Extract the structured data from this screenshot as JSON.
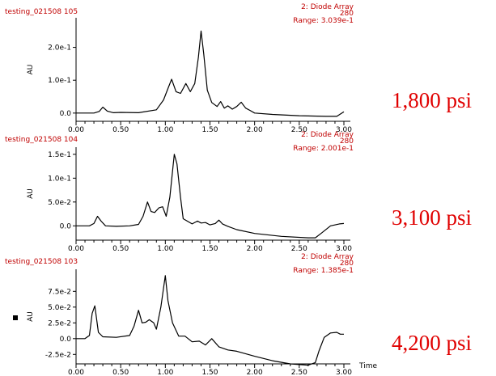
{
  "colors": {
    "header": "#c00000",
    "pressure": "#e00000",
    "trace": "#000000",
    "axis": "#000000"
  },
  "chart_data": [
    {
      "type": "line",
      "run_label": "testing_021508 105",
      "detector": "2: Diode Array",
      "wavelength": "280",
      "range_text": "Range: 3.039e-1",
      "ylabel": "AU",
      "xlabel": "",
      "pressure_label": "1,800 psi",
      "xlim": [
        0,
        3.0
      ],
      "ylim": [
        -0.025,
        0.29
      ],
      "x_ticks": [
        "0.00",
        "0.50",
        "1.00",
        "1.50",
        "2.00",
        "2.50",
        "3.00"
      ],
      "x_tick_values": [
        0,
        0.5,
        1.0,
        1.5,
        2.0,
        2.5,
        3.0
      ],
      "y_ticks": [
        "2.0e-1",
        "1.0e-1",
        "0.0"
      ],
      "y_tick_values": [
        0.2,
        0.1,
        0.0
      ],
      "x": [
        0,
        0.2,
        0.26,
        0.3,
        0.35,
        0.42,
        0.5,
        0.7,
        0.9,
        0.98,
        1.03,
        1.07,
        1.12,
        1.17,
        1.23,
        1.28,
        1.33,
        1.37,
        1.4,
        1.43,
        1.47,
        1.52,
        1.58,
        1.62,
        1.66,
        1.7,
        1.75,
        1.8,
        1.85,
        1.9,
        1.95,
        2.0,
        2.2,
        2.5,
        2.8,
        2.92,
        3.0
      ],
      "y": [
        0,
        0,
        0.005,
        0.018,
        0.006,
        0.001,
        0.002,
        0.001,
        0.01,
        0.04,
        0.075,
        0.103,
        0.065,
        0.06,
        0.09,
        0.065,
        0.09,
        0.17,
        0.25,
        0.18,
        0.07,
        0.032,
        0.02,
        0.035,
        0.015,
        0.022,
        0.012,
        0.02,
        0.033,
        0.015,
        0.008,
        0.0,
        -0.004,
        -0.008,
        -0.01,
        -0.01,
        0.004
      ]
    },
    {
      "type": "line",
      "run_label": "testing_021508 104",
      "detector": "2: Diode Array",
      "wavelength": "280",
      "range_text": "Range: 2.001e-1",
      "ylabel": "AU",
      "xlabel": "",
      "pressure_label": "3,100 psi",
      "xlim": [
        0,
        3.0
      ],
      "ylim": [
        -0.03,
        0.165
      ],
      "x_ticks": [
        "0.00",
        "0.50",
        "1.00",
        "1.50",
        "2.00",
        "2.50",
        "3.00"
      ],
      "x_tick_values": [
        0,
        0.5,
        1.0,
        1.5,
        2.0,
        2.5,
        3.0
      ],
      "y_ticks": [
        "1.5e-1",
        "1.0e-1",
        "5.0e-2",
        "0.0"
      ],
      "y_tick_values": [
        0.15,
        0.1,
        0.05,
        0.0
      ],
      "x": [
        0,
        0.15,
        0.2,
        0.24,
        0.28,
        0.33,
        0.45,
        0.6,
        0.7,
        0.75,
        0.8,
        0.84,
        0.88,
        0.93,
        0.97,
        1.01,
        1.05,
        1.1,
        1.13,
        1.17,
        1.2,
        1.3,
        1.36,
        1.4,
        1.45,
        1.5,
        1.56,
        1.6,
        1.64,
        1.7,
        1.8,
        2.0,
        2.3,
        2.6,
        2.68,
        2.75,
        2.85,
        2.95,
        3.0
      ],
      "y": [
        0,
        0,
        0.005,
        0.02,
        0.01,
        0.0,
        -0.001,
        0.0,
        0.003,
        0.02,
        0.05,
        0.03,
        0.028,
        0.038,
        0.04,
        0.02,
        0.06,
        0.15,
        0.13,
        0.06,
        0.015,
        0.004,
        0.01,
        0.006,
        0.007,
        0.002,
        0.005,
        0.012,
        0.004,
        -0.001,
        -0.008,
        -0.016,
        -0.022,
        -0.025,
        -0.025,
        -0.015,
        0.0,
        0.004,
        0.005
      ]
    },
    {
      "type": "line",
      "run_label": "testing_021508 103",
      "detector": "2: Diode Array",
      "wavelength": "280",
      "range_text": "Range: 1.385e-1",
      "ylabel": "AU",
      "xlabel": "Time",
      "pressure_label": "4,200 psi",
      "xlim": [
        0,
        3.0
      ],
      "ylim": [
        -0.04,
        0.11
      ],
      "x_ticks": [
        "0.00",
        "0.50",
        "1.00",
        "1.50",
        "2.00",
        "2.50",
        "3.00"
      ],
      "x_tick_values": [
        0,
        0.5,
        1.0,
        1.5,
        2.0,
        2.5,
        3.0
      ],
      "y_ticks": [
        "7.5e-2",
        "5.0e-2",
        "2.5e-2",
        "0.0",
        "-2.5e-2"
      ],
      "y_tick_values": [
        0.075,
        0.05,
        0.025,
        0.0,
        -0.025
      ],
      "x": [
        0,
        0.1,
        0.15,
        0.18,
        0.21,
        0.25,
        0.3,
        0.45,
        0.6,
        0.65,
        0.7,
        0.74,
        0.78,
        0.82,
        0.87,
        0.9,
        0.95,
        1.0,
        1.03,
        1.08,
        1.15,
        1.22,
        1.3,
        1.38,
        1.45,
        1.52,
        1.6,
        1.7,
        1.8,
        2.0,
        2.2,
        2.4,
        2.6,
        2.68,
        2.72,
        2.78,
        2.85,
        2.92,
        2.96,
        3.0
      ],
      "y": [
        0,
        0,
        0.005,
        0.04,
        0.052,
        0.01,
        0.003,
        0.002,
        0.005,
        0.02,
        0.045,
        0.025,
        0.026,
        0.03,
        0.025,
        0.015,
        0.05,
        0.1,
        0.06,
        0.025,
        0.004,
        0.004,
        -0.005,
        -0.004,
        -0.01,
        0.0,
        -0.013,
        -0.018,
        -0.02,
        -0.028,
        -0.035,
        -0.04,
        -0.042,
        -0.038,
        -0.02,
        0.002,
        0.009,
        0.01,
        0.007,
        0.007
      ]
    }
  ]
}
